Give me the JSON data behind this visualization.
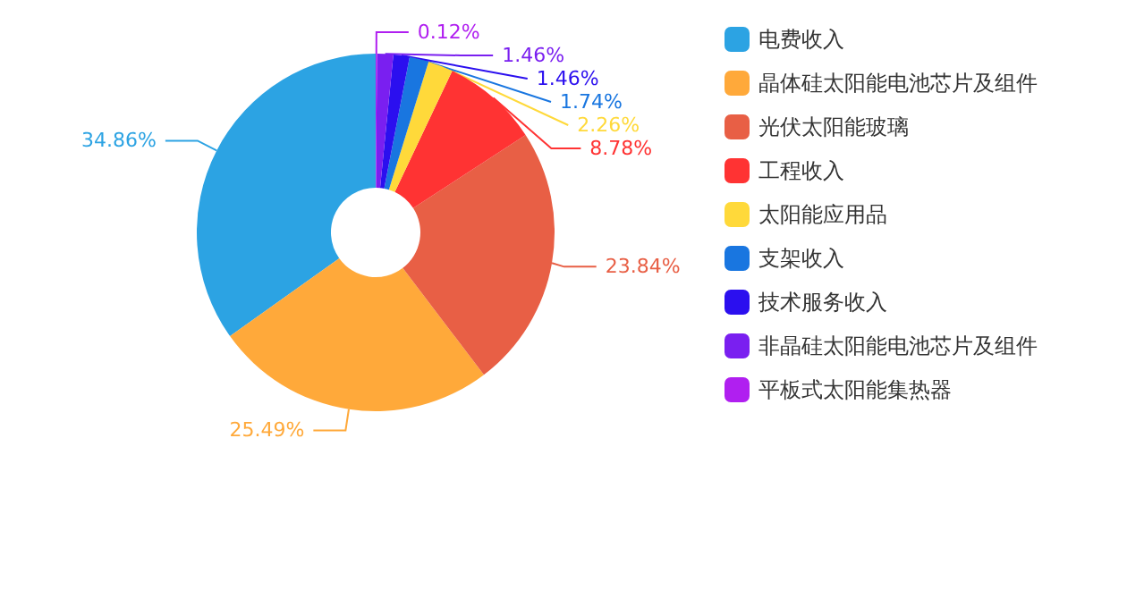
{
  "chart_data": {
    "type": "donut",
    "categories": [
      "电费收入",
      "晶体硅太阳能电池芯片及组件",
      "光伏太阳能玻璃",
      "工程收入",
      "太阳能应用品",
      "支架收入",
      "技术服务收入",
      "非晶硅太阳能电池芯片及组件",
      "平板式太阳能集热器"
    ],
    "values": [
      34.86,
      25.49,
      23.84,
      8.78,
      2.26,
      1.74,
      1.46,
      1.46,
      0.12
    ],
    "colors": [
      "#2ca3e3",
      "#ffa93a",
      "#e85f45",
      "#ff3333",
      "#ffd93a",
      "#1976e0",
      "#2b0fef",
      "#7a1ff0",
      "#b01ff0"
    ],
    "value_labels": [
      "34.86%",
      "25.49%",
      "23.84%",
      "8.78%",
      "2.26%",
      "1.74%",
      "1.46%",
      "1.46%",
      "0.12%"
    ],
    "legend": "right"
  }
}
